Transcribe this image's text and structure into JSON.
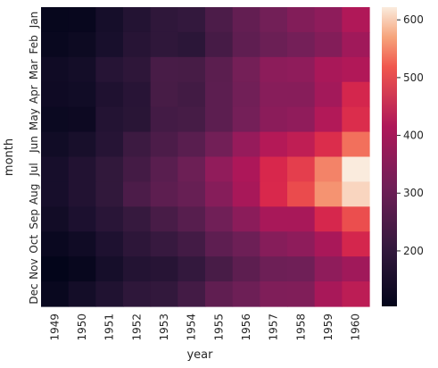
{
  "chart_data": {
    "type": "heatmap",
    "xlabel": "year",
    "ylabel": "month",
    "x": [
      "1949",
      "1950",
      "1951",
      "1952",
      "1953",
      "1954",
      "1955",
      "1956",
      "1957",
      "1958",
      "1959",
      "1960"
    ],
    "y": [
      "Jan",
      "Feb",
      "Mar",
      "Apr",
      "May",
      "Jun",
      "Jul",
      "Aug",
      "Sep",
      "Oct",
      "Nov",
      "Dec"
    ],
    "values": [
      [
        112,
        115,
        145,
        171,
        196,
        204,
        242,
        284,
        315,
        340,
        360,
        417
      ],
      [
        118,
        126,
        150,
        180,
        196,
        188,
        233,
        277,
        301,
        318,
        342,
        391
      ],
      [
        132,
        141,
        178,
        193,
        236,
        235,
        267,
        317,
        356,
        362,
        406,
        419
      ],
      [
        129,
        135,
        163,
        181,
        235,
        227,
        269,
        313,
        348,
        348,
        396,
        461
      ],
      [
        121,
        125,
        172,
        183,
        229,
        234,
        270,
        318,
        355,
        363,
        420,
        472
      ],
      [
        135,
        149,
        178,
        218,
        243,
        264,
        315,
        374,
        422,
        435,
        472,
        535
      ],
      [
        148,
        170,
        199,
        230,
        264,
        302,
        364,
        413,
        465,
        491,
        548,
        622
      ],
      [
        148,
        170,
        199,
        242,
        272,
        293,
        347,
        405,
        467,
        505,
        559,
        606
      ],
      [
        136,
        158,
        184,
        209,
        237,
        259,
        312,
        355,
        404,
        404,
        463,
        508
      ],
      [
        119,
        133,
        162,
        191,
        211,
        229,
        274,
        306,
        347,
        359,
        407,
        461
      ],
      [
        104,
        114,
        146,
        172,
        180,
        203,
        237,
        271,
        305,
        310,
        362,
        390
      ],
      [
        118,
        140,
        166,
        194,
        201,
        229,
        278,
        306,
        336,
        337,
        405,
        432
      ]
    ],
    "colorbar": {
      "range": [
        104,
        622
      ],
      "ticks": [
        200,
        300,
        400,
        500,
        600
      ]
    }
  }
}
